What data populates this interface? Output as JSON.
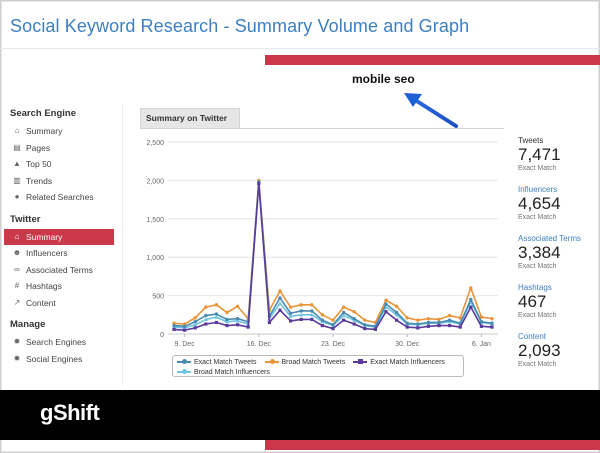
{
  "slide": {
    "title": "Social Keyword Research - Summary Volume and Graph",
    "keyword": "mobile seo",
    "brand": "gShift",
    "colors": {
      "accent": "#c9394a",
      "title": "#3d7fc1",
      "arrow": "#1f5fd6",
      "footer": "#000000"
    }
  },
  "sidebar": {
    "groups": [
      {
        "heading": "Search Engine",
        "items": [
          {
            "label": "Summary",
            "icon": "home-icon"
          },
          {
            "label": "Pages",
            "icon": "page-icon"
          },
          {
            "label": "Top 50",
            "icon": "arrow-up-icon"
          },
          {
            "label": "Trends",
            "icon": "trend-icon"
          },
          {
            "label": "Related Searches",
            "icon": "info-icon"
          }
        ]
      },
      {
        "heading": "Twitter",
        "items": [
          {
            "label": "Summary",
            "icon": "home-icon",
            "active": true
          },
          {
            "label": "Influencers",
            "icon": "users-icon"
          },
          {
            "label": "Associated Terms",
            "icon": "link-icon"
          },
          {
            "label": "Hashtags",
            "icon": "hash-icon"
          },
          {
            "label": "Content",
            "icon": "external-link-icon"
          }
        ]
      },
      {
        "heading": "Manage",
        "items": [
          {
            "label": "Search Engines",
            "icon": "gear-icon"
          },
          {
            "label": "Social Engines",
            "icon": "gear-icon"
          }
        ]
      }
    ]
  },
  "main": {
    "tab_label": "Summary on Twitter"
  },
  "stats": [
    {
      "label": "Tweets",
      "value": "7,471",
      "sub": "Exact Match",
      "highlight": false
    },
    {
      "label": "Influencers",
      "value": "4,654",
      "sub": "Exact Match",
      "highlight": true
    },
    {
      "label": "Associated Terms",
      "value": "3,384",
      "sub": "Exact Match",
      "highlight": true
    },
    {
      "label": "Hashtags",
      "value": "467",
      "sub": "Exact Match",
      "highlight": true
    },
    {
      "label": "Content",
      "value": "2,093",
      "sub": "Exact Match",
      "highlight": true
    }
  ],
  "chart_data": {
    "type": "line",
    "title": "Summary on Twitter",
    "xlabel": "",
    "ylabel": "",
    "ylim": [
      0,
      2500
    ],
    "yticks": [
      0,
      500,
      "1,000",
      "1,500",
      "2,000",
      "2,500"
    ],
    "yticks_values": [
      0,
      500,
      1000,
      1500,
      2000,
      2500
    ],
    "xtick_labels": [
      "9. Dec",
      "16. Dec",
      "23. Dec",
      "30. Dec",
      "6. Jan"
    ],
    "xtick_index": [
      1,
      8,
      15,
      22,
      29
    ],
    "grid": true,
    "legend_position": "bottom",
    "series": [
      {
        "name": "Exact Match Tweets",
        "color": "#4a8ab0",
        "marker": "circle",
        "values": [
          110,
          100,
          160,
          240,
          260,
          190,
          200,
          160,
          1980,
          230,
          470,
          270,
          300,
          300,
          180,
          120,
          280,
          200,
          120,
          100,
          390,
          280,
          140,
          130,
          150,
          150,
          180,
          140,
          450,
          160,
          140
        ]
      },
      {
        "name": "Broad Match Tweets",
        "color": "#e8953a",
        "marker": "circle",
        "values": [
          140,
          130,
          210,
          350,
          380,
          280,
          360,
          200,
          2000,
          310,
          560,
          350,
          380,
          380,
          250,
          180,
          350,
          290,
          180,
          150,
          440,
          360,
          210,
          180,
          200,
          190,
          240,
          210,
          600,
          220,
          200
        ]
      },
      {
        "name": "Exact Match Influencers",
        "color": "#5b3a9a",
        "marker": "square",
        "values": [
          60,
          50,
          80,
          130,
          150,
          110,
          120,
          90,
          1960,
          150,
          310,
          170,
          190,
          190,
          110,
          70,
          180,
          130,
          70,
          60,
          290,
          180,
          90,
          80,
          100,
          110,
          110,
          90,
          350,
          100,
          90
        ]
      },
      {
        "name": "Broad Match Influencers",
        "color": "#6ec4e0",
        "marker": "triangle",
        "values": [
          90,
          80,
          120,
          190,
          220,
          160,
          170,
          130,
          1970,
          200,
          400,
          230,
          250,
          250,
          160,
          110,
          240,
          180,
          110,
          90,
          350,
          250,
          130,
          120,
          140,
          140,
          160,
          130,
          420,
          150,
          130
        ]
      }
    ]
  }
}
